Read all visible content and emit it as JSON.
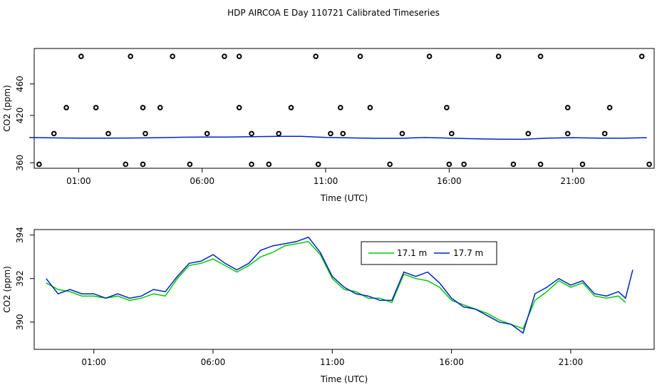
{
  "chart_data": [
    {
      "type": "scatter",
      "title": "HDP AIRCOA E  Day 110721  Calibrated Timeseries",
      "xlabel": "Time (UTC)",
      "ylabel": "CO2 (ppm)",
      "x_unit": "hours UTC",
      "xlim": [
        -0.8,
        24.3
      ],
      "ylim": [
        353,
        505
      ],
      "yticks": [
        360,
        420,
        460
      ],
      "xticks": [
        1,
        6,
        11,
        16,
        21
      ],
      "xtick_labels": [
        "01:00",
        "06:00",
        "11:00",
        "16:00",
        "21:00"
      ],
      "scatter_points": {
        "x": [
          1.1,
          3.1,
          4.8,
          6.9,
          7.5,
          10.6,
          12.4,
          15.2,
          18.0,
          19.7,
          23.8,
          0.5,
          1.7,
          3.6,
          4.3,
          7.5,
          9.6,
          11.6,
          12.8,
          15.9,
          20.8,
          22.5,
          0.0,
          2.2,
          3.7,
          6.2,
          8.0,
          9.1,
          11.2,
          11.7,
          14.1,
          16.1,
          19.2,
          20.8,
          22.3,
          -0.6,
          2.9,
          3.6,
          5.5,
          8.0,
          8.7,
          10.7,
          13.6,
          16.0,
          16.6,
          18.6,
          19.7,
          21.4,
          24.1
        ],
        "y": [
          495,
          495,
          495,
          495,
          495,
          495,
          495,
          495,
          495,
          495,
          495,
          430,
          430,
          430,
          430,
          430,
          430,
          430,
          430,
          430,
          430,
          430,
          397,
          397,
          397,
          397,
          397,
          397,
          397,
          397,
          397,
          397,
          397,
          397,
          397,
          358,
          358,
          358,
          358,
          358,
          358,
          358,
          358,
          358,
          358,
          358,
          358,
          358,
          358
        ]
      },
      "series": [
        {
          "name": "",
          "color": "#0022cc",
          "x": [
            -1.0,
            0,
            1,
            2,
            3,
            4,
            5,
            6,
            7,
            8,
            9,
            10,
            11,
            12,
            13,
            14,
            15,
            16,
            17,
            18,
            19,
            20,
            21,
            22,
            23,
            24.0
          ],
          "y": [
            392,
            391.5,
            391.3,
            391.2,
            391.4,
            391.6,
            392.3,
            392.6,
            392.5,
            393,
            393.4,
            393.5,
            392.1,
            391.5,
            391,
            391,
            392,
            391.3,
            390.5,
            389.9,
            389.7,
            391.3,
            391.8,
            391.2,
            391.1,
            391.8
          ]
        }
      ]
    },
    {
      "type": "line",
      "xlabel": "Time (UTC)",
      "ylabel": "CO2 (ppm)",
      "x_unit": "hours UTC",
      "xlim": [
        -1.5,
        24.5
      ],
      "ylim": [
        388.75,
        394.25
      ],
      "yticks": [
        390,
        392,
        394
      ],
      "xticks": [
        1,
        6,
        11,
        16,
        21
      ],
      "xtick_labels": [
        "01:00",
        "06:00",
        "11:00",
        "16:00",
        "21:00"
      ],
      "legend": {
        "position": "top-center",
        "entries": [
          {
            "label": "17.1 m",
            "color": "#00cc00"
          },
          {
            "label": "17.7 m",
            "color": "#0022cc"
          }
        ]
      },
      "series": [
        {
          "name": "17.1 m",
          "color": "#00cc00",
          "x": [
            -1.0,
            -0.5,
            0,
            0.5,
            1,
            1.5,
            2,
            2.5,
            3,
            3.5,
            4,
            4.5,
            5,
            5.5,
            6,
            6.5,
            7,
            7.5,
            8,
            8.5,
            9,
            9.5,
            10,
            10.5,
            11,
            11.5,
            12,
            12.5,
            13,
            13.5,
            14,
            14.5,
            15,
            15.5,
            16,
            16.5,
            17,
            17.5,
            18,
            18.5,
            19,
            19.5,
            20,
            20.5,
            21,
            21.5,
            22,
            22.5,
            23,
            23.3
          ],
          "y": [
            391.8,
            391.5,
            391.4,
            391.2,
            391.2,
            391.1,
            391.2,
            391.0,
            391.1,
            391.3,
            391.2,
            392.0,
            392.6,
            392.7,
            392.9,
            392.6,
            392.3,
            392.6,
            393.0,
            393.2,
            393.5,
            393.6,
            393.7,
            393.1,
            392.0,
            391.5,
            391.4,
            391.1,
            391.1,
            390.9,
            392.2,
            392.0,
            391.9,
            391.6,
            391.0,
            390.8,
            390.6,
            390.4,
            390.1,
            389.9,
            389.7,
            391.0,
            391.4,
            391.9,
            391.6,
            391.8,
            391.2,
            391.1,
            391.2,
            390.9
          ]
        },
        {
          "name": "17.7 m",
          "color": "#0022cc",
          "x": [
            -1.0,
            -0.5,
            0,
            0.5,
            1,
            1.5,
            2,
            2.5,
            3,
            3.5,
            4,
            4.5,
            5,
            5.5,
            6,
            6.5,
            7,
            7.5,
            8,
            8.5,
            9,
            9.5,
            10,
            10.5,
            11,
            11.5,
            12,
            12.5,
            13,
            13.5,
            14,
            14.5,
            15,
            15.5,
            16,
            16.5,
            17,
            17.5,
            18,
            18.5,
            19,
            19.5,
            20,
            20.5,
            21,
            21.5,
            22,
            22.5,
            23,
            23.3,
            23.6
          ],
          "y": [
            392.0,
            391.3,
            391.5,
            391.3,
            391.3,
            391.1,
            391.3,
            391.1,
            391.2,
            391.5,
            391.4,
            392.1,
            392.7,
            392.8,
            393.1,
            392.7,
            392.4,
            392.7,
            393.3,
            393.5,
            393.6,
            393.7,
            393.9,
            393.2,
            392.1,
            391.6,
            391.3,
            391.2,
            391.0,
            391.0,
            392.3,
            392.1,
            392.3,
            391.8,
            391.1,
            390.7,
            390.6,
            390.3,
            390.0,
            389.9,
            389.5,
            391.3,
            391.6,
            392.0,
            391.7,
            391.9,
            391.3,
            391.2,
            391.4,
            391.1,
            392.4
          ]
        }
      ]
    }
  ]
}
